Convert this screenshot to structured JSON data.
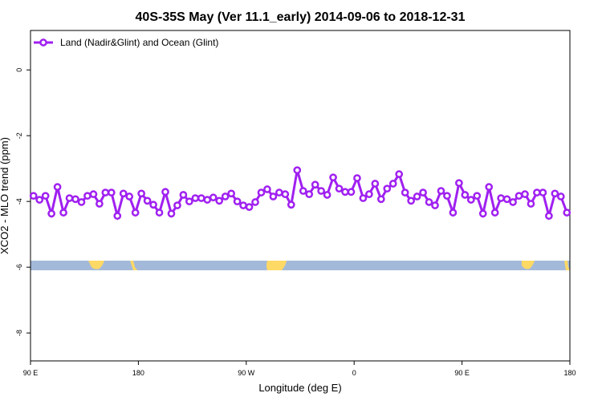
{
  "chart_data": {
    "type": "line",
    "title": "40S-35S May (Ver 11.1_early)   2014-09-06 to 2018-12-31",
    "x_label": "Longitude (deg E)",
    "y_label": "XCO2 - MLO trend (ppm)",
    "xlim": [
      90,
      540
    ],
    "xticks": [
      {
        "value": 90,
        "label": "90 E"
      },
      {
        "value": 180,
        "label": "180"
      },
      {
        "value": 270,
        "label": "90 W"
      },
      {
        "value": 360,
        "label": "0"
      },
      {
        "value": 450,
        "label": "90 E"
      },
      {
        "value": 540,
        "label": "180"
      }
    ],
    "ylim": [
      -8.85,
      1.2
    ],
    "yticks": [
      0,
      -2,
      -4,
      -6,
      -8
    ],
    "legend": "top-left",
    "x": [
      92.5,
      97.5,
      102.5,
      107.5,
      112.5,
      117.5,
      122.5,
      127.5,
      132.5,
      137.5,
      142.5,
      147.5,
      152.5,
      157.5,
      162.5,
      167.5,
      172.5,
      177.5,
      182.5,
      187.5,
      192.5,
      197.5,
      202.5,
      207.5,
      212.5,
      217.5,
      222.5,
      227.5,
      232.5,
      237.5,
      242.5,
      247.5,
      252.5,
      257.5,
      262.5,
      267.5,
      272.5,
      277.5,
      282.5,
      287.5,
      292.5,
      297.5,
      302.5,
      307.5,
      312.5,
      317.5,
      322.5,
      327.5,
      332.5,
      337.5,
      342.5,
      347.5,
      352.5,
      357.5,
      362.5,
      367.5,
      372.5,
      377.5,
      382.5,
      387.5,
      392.5,
      397.5,
      402.5,
      407.5,
      412.5,
      417.5,
      422.5,
      427.5,
      432.5,
      437.5,
      442.5,
      447.5,
      452.5,
      457.5,
      462.5,
      467.5,
      472.5,
      477.5,
      482.5,
      487.5,
      492.5,
      497.5,
      502.5,
      507.5,
      512.5,
      517.5,
      522.5,
      527.5,
      532.5,
      537.5
    ],
    "series": [
      {
        "name": "Land (Nadir&Glint) and Ocean (Glint)",
        "color": "#a020f0",
        "values": [
          -3.83,
          -3.95,
          -3.83,
          -4.37,
          -3.56,
          -4.34,
          -3.9,
          -3.93,
          -4.02,
          -3.83,
          -3.78,
          -4.07,
          -3.73,
          -3.73,
          -4.44,
          -3.76,
          -3.85,
          -4.34,
          -3.76,
          -3.98,
          -4.1,
          -4.34,
          -3.71,
          -4.37,
          -4.12,
          -3.8,
          -4.0,
          -3.9,
          -3.9,
          -3.95,
          -3.88,
          -3.98,
          -3.85,
          -3.76,
          -4.0,
          -4.12,
          -4.17,
          -4.02,
          -3.73,
          -3.63,
          -3.85,
          -3.73,
          -3.78,
          -4.1,
          -3.05,
          -3.68,
          -3.78,
          -3.49,
          -3.68,
          -3.8,
          -3.27,
          -3.61,
          -3.71,
          -3.71,
          -3.29,
          -3.9,
          -3.78,
          -3.46,
          -3.93,
          -3.61,
          -3.46,
          -3.17,
          -3.73,
          -3.98,
          -3.85,
          -3.73,
          -4.02,
          -4.12,
          -3.68,
          -3.83,
          -4.34,
          -3.44,
          -3.8,
          -3.95,
          -3.83,
          -4.37,
          -3.56,
          -4.34,
          -3.9,
          -3.93,
          -4.02,
          -3.83,
          -3.78,
          -4.07,
          -3.73,
          -3.73,
          -4.44,
          -3.76,
          -3.85,
          -4.34
        ]
      }
    ]
  }
}
